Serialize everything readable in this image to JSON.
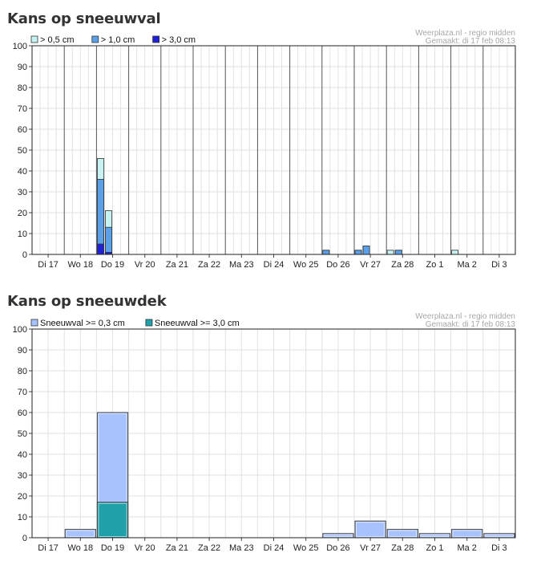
{
  "charts": [
    {
      "title": "Kans op sneeuwval",
      "source": "Weerplaza.nl - regio midden",
      "made": "Gemaakt: di 17 feb 08:13",
      "legend": [
        {
          "label": "> 0,5 cm",
          "color": "#c6f2f2"
        },
        {
          "label": "> 1,0 cm",
          "color": "#5aa0e8"
        },
        {
          "label": "> 3,0 cm",
          "color": "#2020d8"
        }
      ]
    },
    {
      "title": "Kans op sneeuwdek",
      "source": "Weerplaza.nl - regio midden",
      "made": "Gemaakt: di 17 feb 08:13",
      "legend": [
        {
          "label": "Sneeuwval >= 0,3 cm",
          "color": "#a8c2ff"
        },
        {
          "label": "Sneeuwval >= 3,0 cm",
          "color": "#20a0a8"
        }
      ]
    }
  ],
  "chart_data": [
    {
      "type": "bar",
      "title": "Kans op sneeuwval",
      "categories": [
        "Di 17",
        "Wo 18",
        "Do 19",
        "Vr 20",
        "Za 21",
        "Za 22",
        "Ma 23",
        "Di 24",
        "Wo 25",
        "Do 26",
        "Vr 27",
        "Za 28",
        "Zo 1",
        "Ma 2",
        "Di 3"
      ],
      "ylim": [
        0,
        100
      ],
      "yticks": [
        0,
        10,
        20,
        30,
        40,
        50,
        60,
        70,
        80,
        90,
        100
      ],
      "grid": true,
      "legend_position": "top-left",
      "bars_per_day": 4,
      "series": [
        {
          "name": "> 0,5 cm",
          "color": "#c6f2f2",
          "values": [
            [
              0,
              0,
              0,
              0
            ],
            [
              0,
              0,
              0,
              0
            ],
            [
              46,
              21,
              0,
              0
            ],
            [
              0,
              0,
              0,
              0
            ],
            [
              0,
              0,
              0,
              0
            ],
            [
              0,
              0,
              0,
              0
            ],
            [
              0,
              0,
              0,
              0
            ],
            [
              0,
              0,
              0,
              0
            ],
            [
              0,
              0,
              0,
              0
            ],
            [
              2,
              0,
              0,
              0
            ],
            [
              2,
              4,
              0,
              0
            ],
            [
              2,
              2,
              0,
              0
            ],
            [
              0,
              0,
              0,
              0
            ],
            [
              2,
              0,
              0,
              0
            ],
            [
              0,
              0,
              0,
              0
            ]
          ]
        },
        {
          "name": "> 1,0 cm",
          "color": "#5aa0e8",
          "values": [
            [
              0,
              0,
              0,
              0
            ],
            [
              0,
              0,
              0,
              0
            ],
            [
              36,
              13,
              0,
              0
            ],
            [
              0,
              0,
              0,
              0
            ],
            [
              0,
              0,
              0,
              0
            ],
            [
              0,
              0,
              0,
              0
            ],
            [
              0,
              0,
              0,
              0
            ],
            [
              0,
              0,
              0,
              0
            ],
            [
              0,
              0,
              0,
              0
            ],
            [
              2,
              0,
              0,
              0
            ],
            [
              2,
              4,
              0,
              0
            ],
            [
              0,
              2,
              0,
              0
            ],
            [
              0,
              0,
              0,
              0
            ],
            [
              0,
              0,
              0,
              0
            ],
            [
              0,
              0,
              0,
              0
            ]
          ]
        },
        {
          "name": "> 3,0 cm",
          "color": "#2020d8",
          "values": [
            [
              0,
              0,
              0,
              0
            ],
            [
              0,
              0,
              0,
              0
            ],
            [
              5,
              1,
              0,
              0
            ],
            [
              0,
              0,
              0,
              0
            ],
            [
              0,
              0,
              0,
              0
            ],
            [
              0,
              0,
              0,
              0
            ],
            [
              0,
              0,
              0,
              0
            ],
            [
              0,
              0,
              0,
              0
            ],
            [
              0,
              0,
              0,
              0
            ],
            [
              0,
              0,
              0,
              0
            ],
            [
              0,
              0,
              0,
              0
            ],
            [
              0,
              0,
              0,
              0
            ],
            [
              0,
              0,
              0,
              0
            ],
            [
              0,
              0,
              0,
              0
            ],
            [
              0,
              0,
              0,
              0
            ]
          ]
        }
      ]
    },
    {
      "type": "bar",
      "title": "Kans op sneeuwdek",
      "categories": [
        "Di 17",
        "Wo 18",
        "Do 19",
        "Vr 20",
        "Za 21",
        "Za 22",
        "Ma 23",
        "Di 24",
        "Wo 25",
        "Do 26",
        "Vr 27",
        "Za 28",
        "Zo 1",
        "Ma 2",
        "Di 3"
      ],
      "ylim": [
        0,
        100
      ],
      "yticks": [
        0,
        10,
        20,
        30,
        40,
        50,
        60,
        70,
        80,
        90,
        100
      ],
      "grid": true,
      "legend_position": "top-left",
      "series": [
        {
          "name": "Sneeuwval >= 0,3 cm",
          "color": "#a8c2ff",
          "values": [
            0,
            4,
            60,
            0,
            0,
            0,
            0,
            0,
            0,
            2,
            8,
            4,
            2,
            4,
            2
          ]
        },
        {
          "name": "Sneeuwval >= 3,0 cm",
          "color": "#20a0a8",
          "values": [
            0,
            0,
            17,
            0,
            0,
            0,
            0,
            0,
            0,
            0,
            0,
            0,
            0,
            0,
            0
          ]
        }
      ]
    }
  ]
}
